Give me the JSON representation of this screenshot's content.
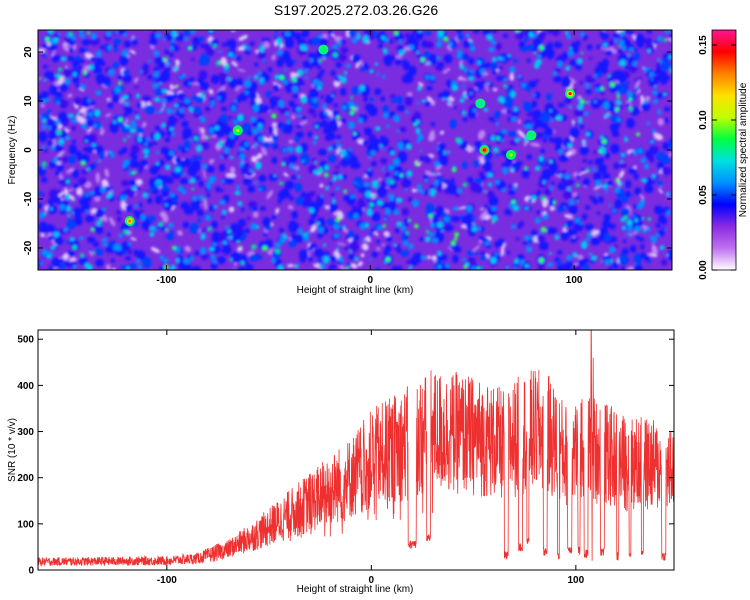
{
  "title": "S197.2025.272.03.26.G26",
  "chart_data": [
    {
      "type": "heatmap",
      "xlabel": "Height of straight line (km)",
      "ylabel": "Frequency (Hz)",
      "xlim": [
        -163,
        148
      ],
      "ylim": [
        -24.5,
        24.5
      ],
      "xticks": [
        -100,
        0,
        100
      ],
      "yticks": [
        -20,
        -10,
        0,
        10,
        20
      ],
      "colorbar": {
        "label": "Normalized spectral amplitude",
        "range": [
          0.0,
          0.16
        ],
        "ticks": [
          0.0,
          0.05,
          0.1,
          0.15
        ],
        "colormap": [
          "#ffffff",
          "#c070f0",
          "#8a2be2",
          "#0000ff",
          "#0090ff",
          "#00e0e0",
          "#00ff40",
          "#c0ff00",
          "#ffe000",
          "#ff8000",
          "#ff0000",
          "#ff1493"
        ]
      },
      "peaks": [
        {
          "x": 56,
          "y": 0,
          "value": 0.15
        },
        {
          "x": 98,
          "y": 11.5,
          "value": 0.14
        },
        {
          "x": -118,
          "y": -14.5,
          "value": 0.13
        },
        {
          "x": -65,
          "y": 4,
          "value": 0.11
        },
        {
          "x": 69,
          "y": -1,
          "value": 0.1
        },
        {
          "x": 79,
          "y": 3,
          "value": 0.09
        },
        {
          "x": -23,
          "y": 20.5,
          "value": 0.09
        },
        {
          "x": 54,
          "y": 9.5,
          "value": 0.08
        }
      ]
    },
    {
      "type": "line",
      "xlabel": "Height of straight line (km)",
      "ylabel": "SNR (10 * v/v)",
      "xlim": [
        -163,
        148
      ],
      "ylim": [
        0,
        520
      ],
      "xticks": [
        -100,
        0,
        100
      ],
      "yticks": [
        0,
        100,
        200,
        300,
        400,
        500
      ],
      "color": "#ee3030",
      "profile": [
        {
          "x": -163,
          "y": 18
        },
        {
          "x": -100,
          "y": 20
        },
        {
          "x": -85,
          "y": 25
        },
        {
          "x": -70,
          "y": 45
        },
        {
          "x": -55,
          "y": 80
        },
        {
          "x": -40,
          "y": 120
        },
        {
          "x": -25,
          "y": 160
        },
        {
          "x": -10,
          "y": 200
        },
        {
          "x": 0,
          "y": 240
        },
        {
          "x": 10,
          "y": 260
        },
        {
          "x": 20,
          "y": 280
        },
        {
          "x": 30,
          "y": 300
        },
        {
          "x": 45,
          "y": 295
        },
        {
          "x": 55,
          "y": 285
        },
        {
          "x": 65,
          "y": 270
        },
        {
          "x": 75,
          "y": 300
        },
        {
          "x": 85,
          "y": 300
        },
        {
          "x": 95,
          "y": 250
        },
        {
          "x": 105,
          "y": 270
        },
        {
          "x": 115,
          "y": 250
        },
        {
          "x": 125,
          "y": 230
        },
        {
          "x": 135,
          "y": 230
        },
        {
          "x": 148,
          "y": 210
        }
      ],
      "dropouts": [
        {
          "from": 18,
          "to": 22,
          "y": 55
        },
        {
          "from": 27,
          "to": 29,
          "y": 70
        },
        {
          "from": 65,
          "to": 67,
          "y": 30
        },
        {
          "from": 72,
          "to": 74,
          "y": 50
        },
        {
          "from": 76,
          "to": 77,
          "y": 60
        },
        {
          "from": 84,
          "to": 86,
          "y": 40
        },
        {
          "from": 91,
          "to": 92,
          "y": 30
        },
        {
          "from": 96,
          "to": 98,
          "y": 45
        },
        {
          "from": 101,
          "to": 102,
          "y": 40
        },
        {
          "from": 104,
          "to": 106,
          "y": 35
        },
        {
          "from": 112,
          "to": 114,
          "y": 40
        },
        {
          "from": 120,
          "to": 121,
          "y": 30
        },
        {
          "from": 126,
          "to": 127,
          "y": 35
        },
        {
          "from": 132,
          "to": 133,
          "y": 40
        },
        {
          "from": 142,
          "to": 144,
          "y": 30
        }
      ],
      "spikes": [
        {
          "x": 107.5,
          "y": 520
        },
        {
          "x": 108.5,
          "y": 460
        },
        {
          "x": 108,
          "y": 20
        }
      ]
    }
  ]
}
